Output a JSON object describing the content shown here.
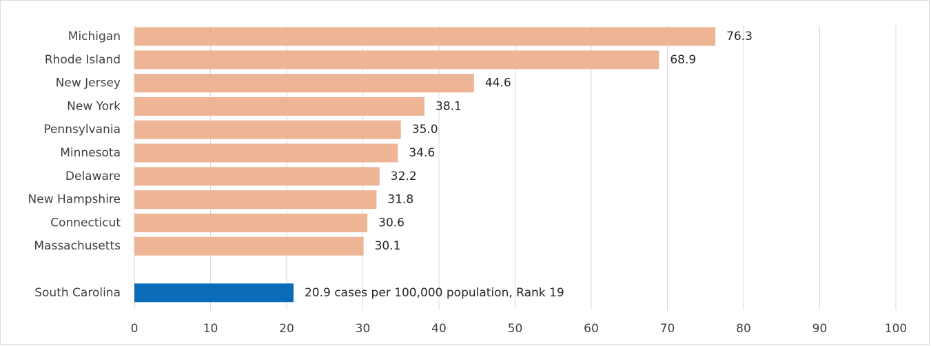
{
  "chart_data": {
    "type": "bar",
    "orientation": "horizontal",
    "title": "",
    "xlabel": "",
    "ylabel": "",
    "xlim": [
      0,
      100
    ],
    "x_ticks": [
      0,
      10,
      20,
      30,
      40,
      50,
      60,
      70,
      80,
      90,
      100
    ],
    "grid": "vertical",
    "legend": "none",
    "categories": [
      "Michigan",
      "Rhode Island",
      "New Jersey",
      "New York",
      "Pennsylvania",
      "Minnesota",
      "Delaware",
      "New Hampshire",
      "Connecticut",
      "Massachusetts",
      "South Carolina"
    ],
    "values": [
      76.3,
      68.9,
      44.6,
      38.1,
      35.0,
      34.6,
      32.2,
      31.8,
      30.6,
      30.1,
      20.9
    ],
    "data_labels": [
      "76.3",
      "68.9",
      "44.6",
      "38.1",
      "35.0",
      "34.6",
      "32.2",
      "31.8",
      "30.6",
      "30.1",
      "20.9 cases per 100,000 population, Rank 19"
    ],
    "highlight": "South Carolina",
    "colors": {
      "bar": "#EDB596",
      "highlight_bar": "#0A6BB9",
      "grid": "#D9D9D9",
      "text": "#404040"
    }
  }
}
